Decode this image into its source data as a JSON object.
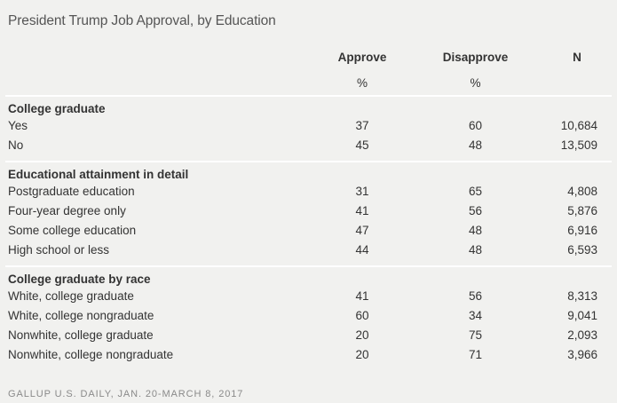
{
  "title": "President Trump Job Approval, by Education",
  "columns": {
    "approve": "Approve",
    "disapprove": "Disapprove",
    "n": "N",
    "approve_unit": "%",
    "disapprove_unit": "%"
  },
  "sections": [
    {
      "title": "College graduate",
      "rows": [
        {
          "label": "Yes",
          "approve": "37",
          "disapprove": "60",
          "n": "10,684"
        },
        {
          "label": "No",
          "approve": "45",
          "disapprove": "48",
          "n": "13,509"
        }
      ]
    },
    {
      "title": "Educational attainment in detail",
      "rows": [
        {
          "label": "Postgraduate education",
          "approve": "31",
          "disapprove": "65",
          "n": "4,808"
        },
        {
          "label": "Four-year degree only",
          "approve": "41",
          "disapprove": "56",
          "n": "5,876"
        },
        {
          "label": "Some college education",
          "approve": "47",
          "disapprove": "48",
          "n": "6,916"
        },
        {
          "label": "High school or less",
          "approve": "44",
          "disapprove": "48",
          "n": "6,593"
        }
      ]
    },
    {
      "title": "College graduate by race",
      "rows": [
        {
          "label": "White, college graduate",
          "approve": "41",
          "disapprove": "56",
          "n": "8,313"
        },
        {
          "label": "White, college nongraduate",
          "approve": "60",
          "disapprove": "34",
          "n": "9,041"
        },
        {
          "label": "Nonwhite, college graduate",
          "approve": "20",
          "disapprove": "75",
          "n": "2,093"
        },
        {
          "label": "Nonwhite, college nongraduate",
          "approve": "20",
          "disapprove": "71",
          "n": "3,966"
        }
      ]
    }
  ],
  "source": "GALLUP U.S. DAILY, JAN. 20-MARCH 8, 2017"
}
